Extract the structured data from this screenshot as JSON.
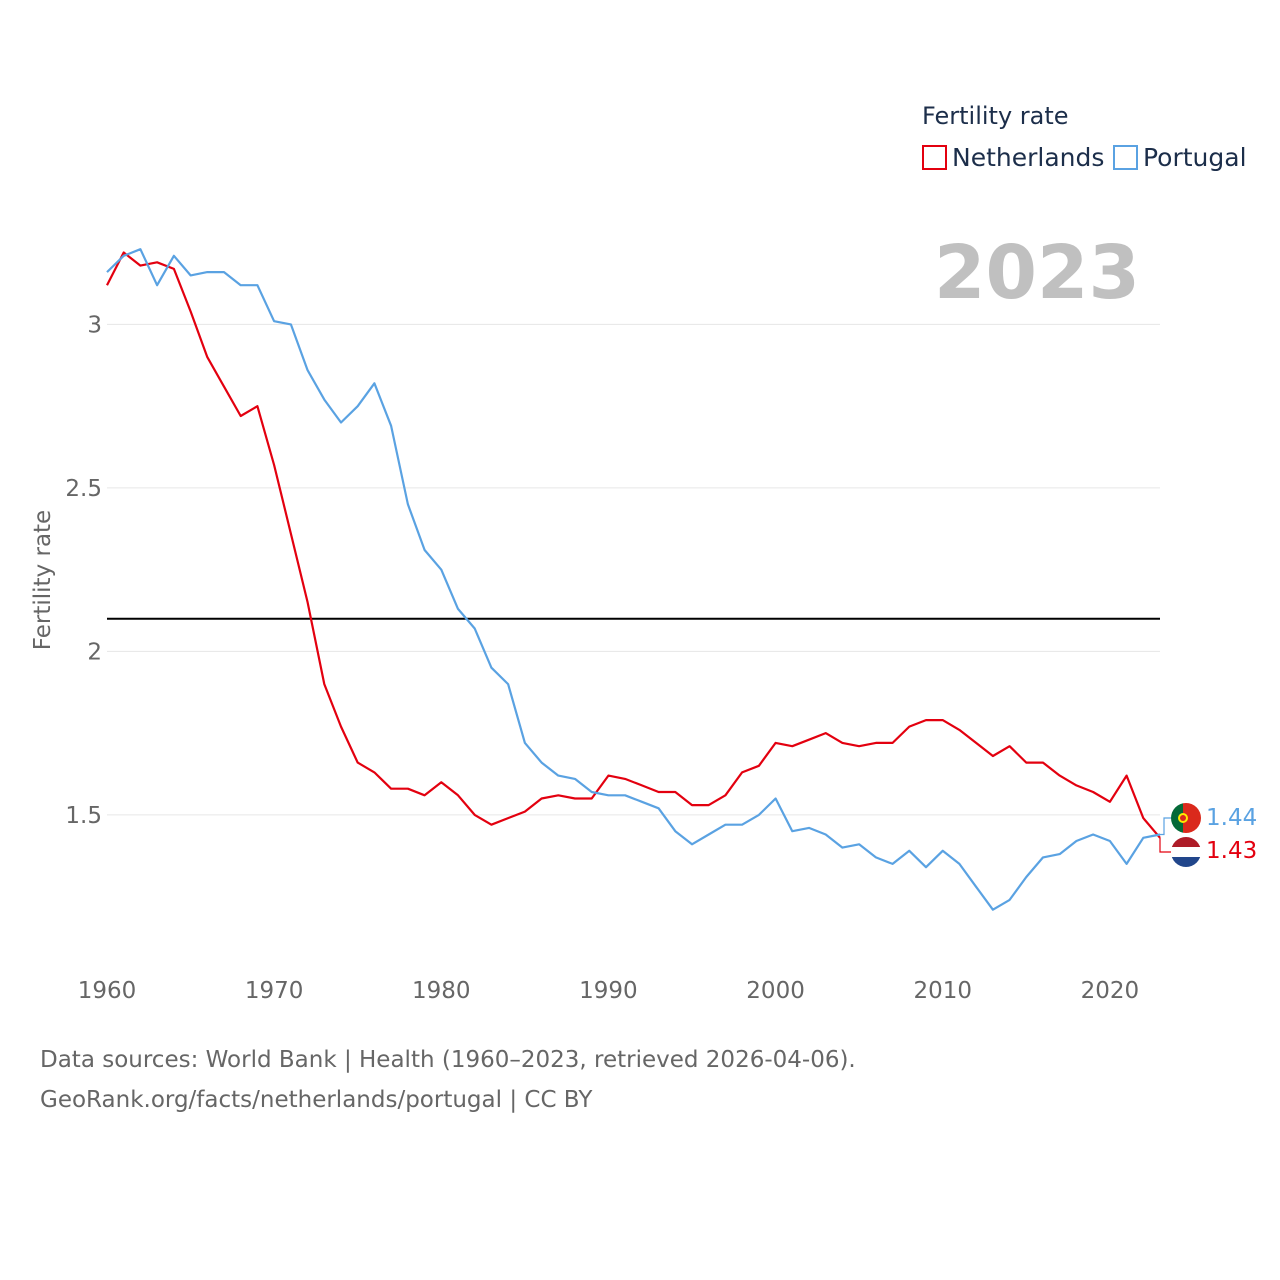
{
  "chart_data": {
    "type": "line",
    "title": "Fertility rate",
    "year_label": "2023",
    "ylabel": "Fertility rate",
    "xlabel": "",
    "xlim": [
      1960,
      2023
    ],
    "ylim": [
      1.05,
      3.35
    ],
    "x_ticks": [
      1960,
      1970,
      1980,
      1990,
      2000,
      2010,
      2020
    ],
    "y_ticks": [
      1.5,
      2,
      2.5,
      3
    ],
    "y_tick_labels": [
      "1.5",
      "2",
      "2.5",
      "3"
    ],
    "reference_line": 2.1,
    "series": [
      {
        "name": "Netherlands",
        "color": "#e3000f",
        "end_label": "1.43",
        "x_start": 1960,
        "values": [
          3.12,
          3.22,
          3.18,
          3.19,
          3.17,
          3.04,
          2.9,
          2.81,
          2.72,
          2.75,
          2.57,
          2.36,
          2.15,
          1.9,
          1.77,
          1.66,
          1.63,
          1.58,
          1.58,
          1.56,
          1.6,
          1.56,
          1.5,
          1.47,
          1.49,
          1.51,
          1.55,
          1.56,
          1.55,
          1.55,
          1.62,
          1.61,
          1.59,
          1.57,
          1.57,
          1.53,
          1.53,
          1.56,
          1.63,
          1.65,
          1.72,
          1.71,
          1.73,
          1.75,
          1.72,
          1.71,
          1.72,
          1.72,
          1.77,
          1.79,
          1.79,
          1.76,
          1.72,
          1.68,
          1.71,
          1.66,
          1.66,
          1.62,
          1.59,
          1.57,
          1.54,
          1.62,
          1.49,
          1.43
        ]
      },
      {
        "name": "Portugal",
        "color": "#5aa2e2",
        "end_label": "1.44",
        "x_start": 1960,
        "values": [
          3.16,
          3.21,
          3.23,
          3.12,
          3.21,
          3.15,
          3.16,
          3.16,
          3.12,
          3.12,
          3.01,
          3.0,
          2.86,
          2.77,
          2.7,
          2.75,
          2.82,
          2.69,
          2.45,
          2.31,
          2.25,
          2.13,
          2.07,
          1.95,
          1.9,
          1.72,
          1.66,
          1.62,
          1.61,
          1.57,
          1.56,
          1.56,
          1.54,
          1.52,
          1.45,
          1.41,
          1.44,
          1.47,
          1.47,
          1.5,
          1.55,
          1.45,
          1.46,
          1.44,
          1.4,
          1.41,
          1.37,
          1.35,
          1.39,
          1.34,
          1.39,
          1.35,
          1.28,
          1.21,
          1.24,
          1.31,
          1.37,
          1.38,
          1.42,
          1.44,
          1.42,
          1.35,
          1.43,
          1.44
        ]
      }
    ]
  },
  "footer": {
    "line1": "Data sources: World Bank | Health (1960–2023, retrieved 2026-04-06).",
    "line2": "GeoRank.org/facts/netherlands/portugal | CC BY"
  }
}
